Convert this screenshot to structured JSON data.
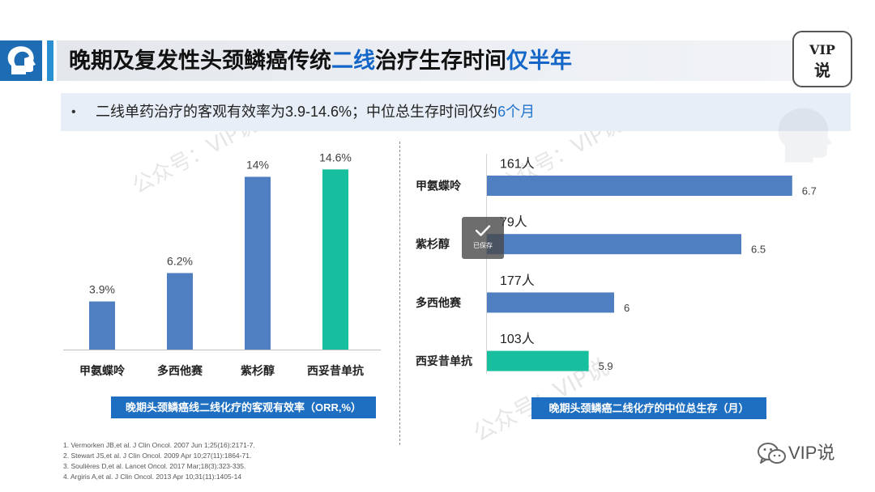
{
  "logo": {
    "icon": "head-logo-icon"
  },
  "header": {
    "title_part1": "晚期及复发性头颈鳞癌传统",
    "title_highlight1": "二线",
    "title_part2": "治疗生存时间",
    "title_highlight2": "仅半年"
  },
  "badge": {
    "line1": "VIP",
    "line2": "说"
  },
  "bullet": {
    "symbol": "•",
    "text": "二线单药治疗的客观有效率为3.9-14.6%；中位总生存时间仅约",
    "highlight": "6个月"
  },
  "watermark": {
    "text": "公众号：VIP说",
    "icon": "head-watermark-icon"
  },
  "chart_data": [
    {
      "type": "bar",
      "horizontal": false,
      "title": "晚期头颈鳞癌线二线化疗的客观有效率（ORR,%）",
      "categories": [
        "甲氨蝶呤",
        "多西他赛",
        "紫杉醇",
        "西妥昔单抗"
      ],
      "values": [
        3.9,
        6.2,
        14,
        14.6
      ],
      "data_labels": [
        "3.9%",
        "6.2%",
        "14%",
        "14.6%"
      ],
      "colors": [
        "#4f7fc1",
        "#4f7fc1",
        "#4f7fc1",
        "#18bf9f"
      ],
      "xlabel": "",
      "ylabel": "",
      "ylim": [
        0,
        16
      ],
      "grid": false
    },
    {
      "type": "bar",
      "horizontal": true,
      "title": "晚期头颈鳞癌二线化疗的中位总生存（月）",
      "categories": [
        "甲氨蝶呤",
        "紫杉醇",
        "多西他赛",
        "西妥昔单抗"
      ],
      "values": [
        6.7,
        6.5,
        6,
        5.9
      ],
      "data_labels": [
        "6.7",
        "6.5",
        "6",
        "5.9"
      ],
      "sample_sizes": [
        "161人",
        "79人",
        "177人",
        "103人"
      ],
      "colors": [
        "#4f7fc1",
        "#4f7fc1",
        "#4f7fc1",
        "#18bf9f"
      ],
      "xlabel": "",
      "ylabel": "",
      "xlim": [
        5.5,
        7.0
      ],
      "grid": false
    }
  ],
  "references": [
    "1. Vermorken JB,et al. J Clin Oncol. 2007 Jun 1;25(16):2171-7.",
    "2. Stewart JS,et al. J Clin Oncol. 2009 Apr 10;27(11):1864-71.",
    "3. Soulières D,et al. Lancet Oncol. 2017 Mar;18(3):323-335.",
    "4. Argiris A,et al. J Clin Oncol. 2013 Apr 10;31(11):1405-14"
  ],
  "toast": {
    "icon": "checkmark-icon",
    "text": "已保存"
  },
  "footer": {
    "icon": "wechat-icon",
    "brand": "VIP说"
  },
  "theme": {
    "accent_blue": "#1366c8",
    "highlight_blue": "#1f74cc",
    "caption_blue": "#1e6fc1",
    "logo_blue": "#1e6db4",
    "bullet_band": "#e7eef7"
  }
}
